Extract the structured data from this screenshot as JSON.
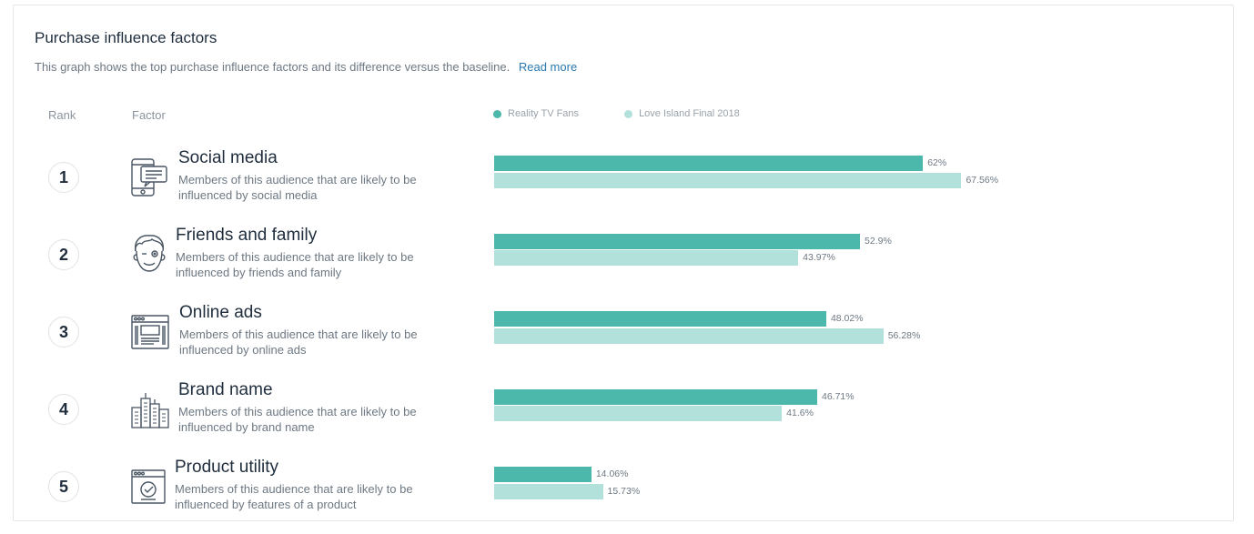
{
  "header": {
    "title": "Purchase influence factors",
    "description": "This graph shows the top purchase influence factors and its difference versus the baseline.",
    "read_more": "Read more"
  },
  "columns": {
    "rank": "Rank",
    "factor": "Factor"
  },
  "colors": {
    "primary": "#4bb8ab",
    "baseline": "#b2e0db"
  },
  "chart_data": {
    "type": "bar",
    "orientation": "horizontal",
    "legend_position": "top",
    "categories": [
      "Social media",
      "Friends and family",
      "Online ads",
      "Brand name",
      "Product utility"
    ],
    "series": [
      {
        "name": "Reality TV Fans",
        "values": [
          62,
          52.9,
          48.02,
          46.71,
          14.06
        ],
        "labels": [
          "62%",
          "52.9%",
          "48.02%",
          "46.71%",
          "14.06%"
        ]
      },
      {
        "name": "Love Island Final 2018",
        "values": [
          67.56,
          43.97,
          56.28,
          41.6,
          15.73
        ],
        "labels": [
          "67.56%",
          "43.97%",
          "56.28%",
          "41.6%",
          "15.73%"
        ]
      }
    ],
    "xlim": [
      0,
      100
    ]
  },
  "factors": [
    {
      "rank": "1",
      "name": "Social media",
      "icon": "chat-phone-icon",
      "description": "Members of this audience that are likely to be influenced by social media"
    },
    {
      "rank": "2",
      "name": "Friends and family",
      "icon": "friend-face-icon",
      "description": "Members of this audience that are likely to be influenced by friends and family"
    },
    {
      "rank": "3",
      "name": "Online ads",
      "icon": "browser-ad-icon",
      "description": "Members of this audience that are likely to be influenced by online ads"
    },
    {
      "rank": "4",
      "name": "Brand name",
      "icon": "city-buildings-icon",
      "description": "Members of this audience that are likely to be influenced by brand name"
    },
    {
      "rank": "5",
      "name": "Product utility",
      "icon": "browser-check-icon",
      "description": "Members of this audience that are likely to be influenced by features of a product"
    }
  ]
}
